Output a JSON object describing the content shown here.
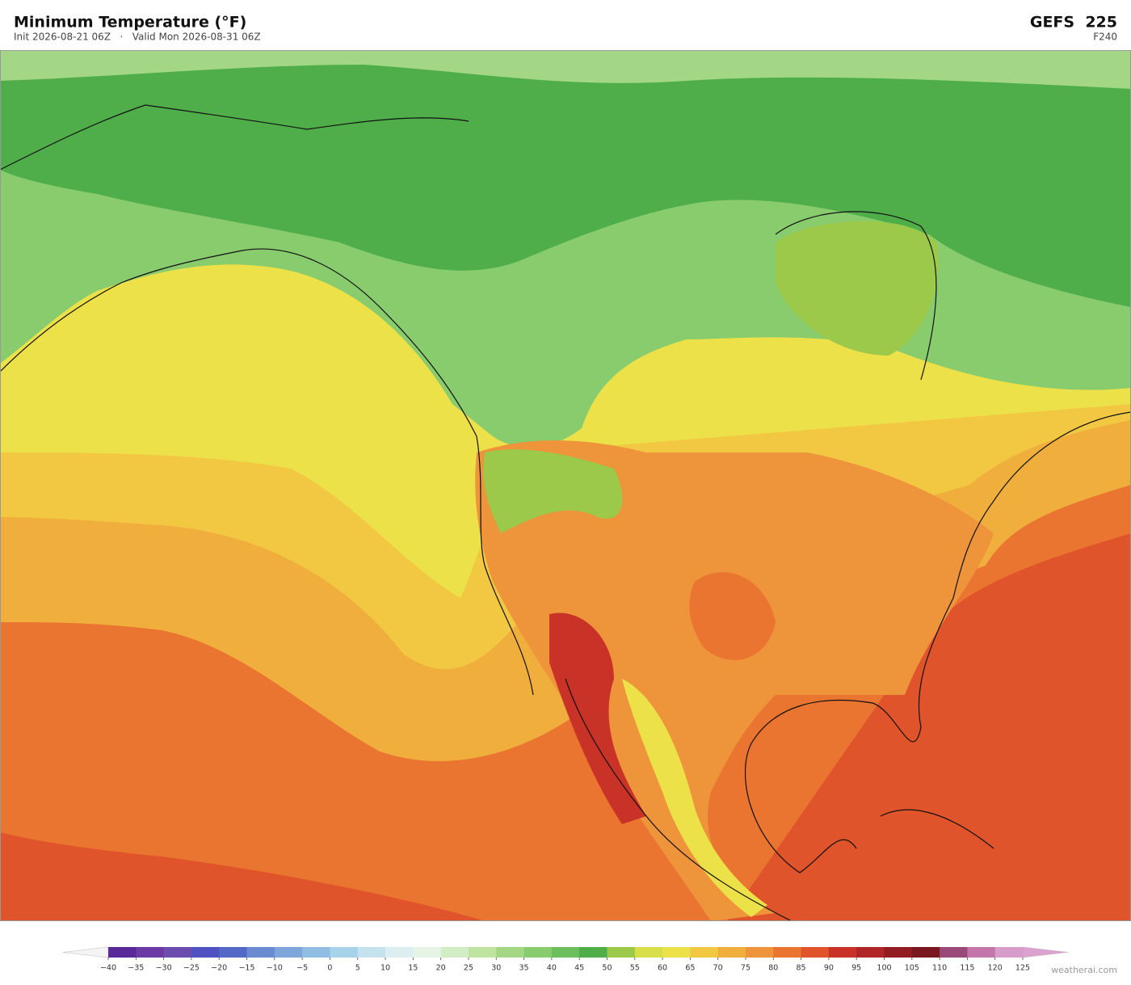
{
  "header": {
    "title": "Minimum Temperature  (°F)",
    "subtitle": "Init 2026-08-21 06Z   ·   Valid Mon 2026-08-31 06Z",
    "model": "GEFS  225",
    "step": "F240"
  },
  "colorbar": {
    "ticks": [
      {
        "value": -40,
        "label": "−40"
      },
      {
        "value": -35,
        "label": "−35"
      },
      {
        "value": -30,
        "label": "−30"
      },
      {
        "value": -25,
        "label": "−25"
      },
      {
        "value": -20,
        "label": "−20"
      },
      {
        "value": -15,
        "label": "−15"
      },
      {
        "value": -10,
        "label": "−10"
      },
      {
        "value": -5,
        "label": "−5"
      },
      0,
      5,
      10,
      15,
      20,
      25,
      30,
      35,
      40,
      45,
      50,
      55,
      60,
      65,
      70,
      75,
      80,
      85,
      90,
      95,
      100,
      105,
      110,
      115,
      120,
      125
    ],
    "colors": [
      "#5b2a9a",
      "#6b3aa5",
      "#6d4cb0",
      "#4f52c0",
      "#5468c8",
      "#6a8bd0",
      "#7ea6da",
      "#90bde2",
      "#a7d3ea",
      "#c4e3ef",
      "#ddeef1",
      "#e6f4e6",
      "#d2ecc4",
      "#bfe3a0",
      "#a3d685",
      "#88cc6e",
      "#6cbf5c",
      "#4fae4a",
      "#9cc94a",
      "#d7df4b",
      "#ede14a",
      "#f2c843",
      "#f0ae3d",
      "#ee943a",
      "#ea7531",
      "#e0542b",
      "#c93227",
      "#b02525",
      "#921c22",
      "#7a1820",
      "#9a4a7a",
      "#c276aa",
      "#d89ccb"
    ],
    "under_color": "#f4f4f4",
    "over_color": "#dba2d0"
  },
  "credit": "weatherai.com"
}
